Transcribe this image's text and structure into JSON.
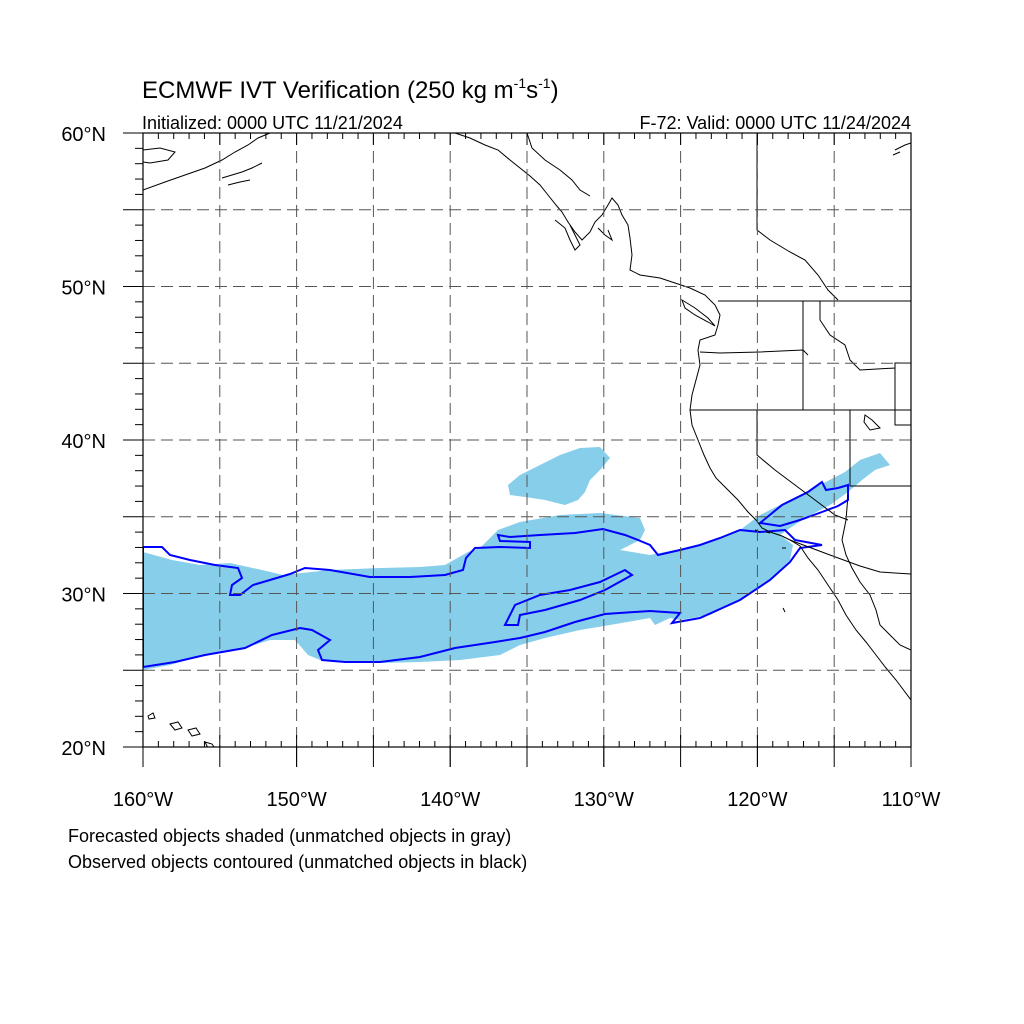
{
  "title": {
    "main": "ECMWF IVT Verification (250 kg m",
    "sup1": "-1",
    "mid": "s",
    "sup2": "-1",
    "close": ")"
  },
  "subtitle": {
    "initialized": "Initialized: 0000 UTC 11/21/2024",
    "valid": "F-72: Valid: 0000 UTC 11/24/2024"
  },
  "map_data": {
    "lon_range": [
      -160,
      -110
    ],
    "lat_range": [
      20,
      60
    ],
    "x_ticks": [
      {
        "lon": -160,
        "label": "160°W"
      },
      {
        "lon": -150,
        "label": "150°W"
      },
      {
        "lon": -140,
        "label": "140°W"
      },
      {
        "lon": -130,
        "label": "130°W"
      },
      {
        "lon": -120,
        "label": "120°W"
      },
      {
        "lon": -110,
        "label": "110°W"
      }
    ],
    "y_ticks": [
      {
        "lat": 20,
        "label": "20°N"
      },
      {
        "lat": 30,
        "label": "30°N"
      },
      {
        "lat": 40,
        "label": "40°N"
      },
      {
        "lat": 50,
        "label": "50°N"
      },
      {
        "lat": 60,
        "label": "60°N"
      }
    ],
    "grid_lons": [
      -155,
      -150,
      -145,
      -140,
      -135,
      -130,
      -125,
      -120,
      -115
    ],
    "grid_lats": [
      25,
      30,
      35,
      40,
      45,
      50,
      55
    ],
    "forecast_color": "#87ceeb",
    "observed_color": "#0000ff",
    "coast_color": "#000000"
  },
  "footer": {
    "line1": "Forecasted objects shaded (unmatched objects in gray)",
    "line2": "Observed objects contoured (unmatched objects in black)"
  }
}
